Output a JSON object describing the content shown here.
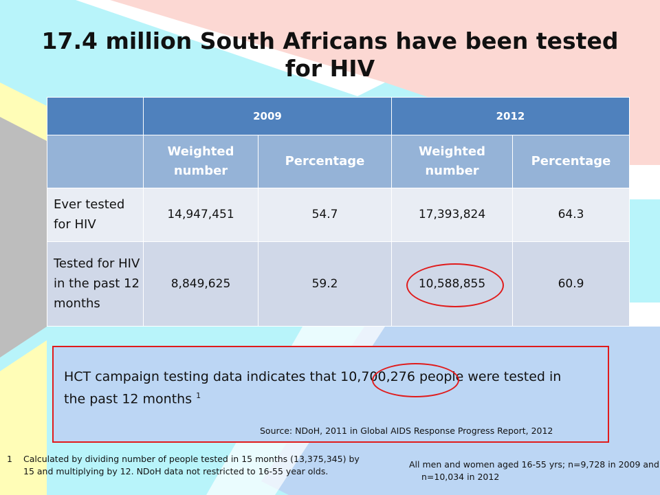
{
  "title": "17.4 million South Africans have been tested for HIV",
  "table": {
    "years": [
      "2009",
      "2012"
    ],
    "subheaders": [
      "Weighted number",
      "Percentage",
      "Weighted number",
      "Percentage"
    ],
    "rows": [
      {
        "label": "Ever tested for HIV",
        "values": [
          "14,947,451",
          "54.7",
          "17,393,824",
          "64.3"
        ]
      },
      {
        "label": "Tested for HIV in the past 12 months",
        "values": [
          "8,849,625",
          "59.2",
          "10,588,855",
          "60.9"
        ]
      }
    ]
  },
  "callout": {
    "text": "HCT campaign testing data indicates that 10,700,276 people were tested in the past 12 months",
    "sup": "1",
    "source": "Source: NDoH, 2011 in Global AIDS Response Progress Report, 2012"
  },
  "footnote": {
    "number": "1",
    "text": "Calculated by dividing number of people tested in 15 months (13,375,345) by 15 and multiplying by 12. NDoH data not restricted to 16-55 year olds."
  },
  "sample_note": "All men and women aged 16-55 yrs; n=9,728 in 2009 and n=10,034 in 2012",
  "colors": {
    "header": "#4f81bd",
    "subheader": "#95b3d7",
    "row_light": "#e9edf4",
    "row_dark": "#d0d8e8",
    "highlight": "#e01b1b"
  }
}
